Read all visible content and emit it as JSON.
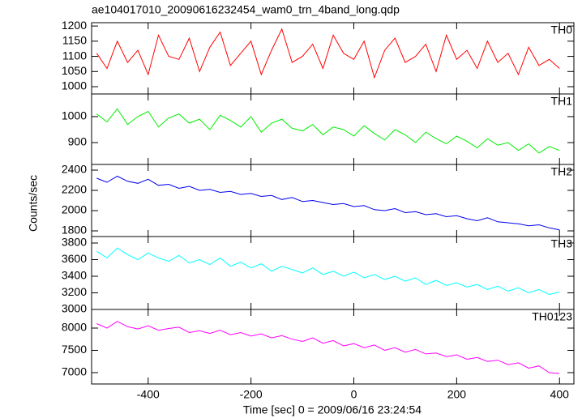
{
  "chart_data": {
    "type": "line",
    "title": "ae104017010_20090616232454_wam0_trn_4band_long.qdp",
    "xlabel": "Time [sec] 0 = 2009/06/16 23:24:54",
    "ylabel": "Counts/sec",
    "xlim": [
      -510,
      428
    ],
    "xticks": [
      -400,
      -200,
      0,
      200,
      400
    ],
    "x": [
      -500,
      -480,
      -460,
      -440,
      -420,
      -400,
      -380,
      -360,
      -340,
      -320,
      -300,
      -280,
      -260,
      -240,
      -220,
      -200,
      -180,
      -160,
      -140,
      -120,
      -100,
      -80,
      -60,
      -40,
      -20,
      0,
      20,
      40,
      60,
      80,
      100,
      120,
      140,
      160,
      180,
      200,
      220,
      240,
      260,
      280,
      300,
      320,
      340,
      360,
      380,
      400
    ],
    "panels": [
      {
        "name": "TH0",
        "color": "#ff0000",
        "ylim": [
          976,
          1211
        ],
        "yticks": [
          1000,
          1050,
          1100,
          1150,
          1200
        ],
        "values": [
          1110,
          1060,
          1150,
          1080,
          1120,
          1040,
          1170,
          1100,
          1090,
          1160,
          1050,
          1130,
          1180,
          1070,
          1110,
          1150,
          1040,
          1120,
          1190,
          1080,
          1100,
          1140,
          1060,
          1170,
          1110,
          1090,
          1150,
          1030,
          1120,
          1160,
          1080,
          1100,
          1140,
          1050,
          1170,
          1090,
          1120,
          1060,
          1150,
          1080,
          1110,
          1040,
          1130,
          1070,
          1090,
          1060
        ]
      },
      {
        "name": "TH1",
        "color": "#00ee00",
        "ylim": [
          816,
          1087
        ],
        "yticks": [
          900,
          1000
        ],
        "values": [
          1010,
          980,
          1030,
          970,
          1000,
          1020,
          960,
          995,
          1010,
          975,
          990,
          950,
          1005,
          985,
          960,
          1000,
          940,
          975,
          990,
          955,
          945,
          970,
          930,
          960,
          950,
          925,
          965,
          935,
          910,
          950,
          930,
          900,
          940,
          915,
          895,
          925,
          905,
          880,
          915,
          890,
          900,
          870,
          895,
          860,
          885,
          870
        ]
      },
      {
        "name": "TH2",
        "color": "#0000ee",
        "ylim": [
          1744,
          2456
        ],
        "yticks": [
          1800,
          2000,
          2200,
          2400
        ],
        "values": [
          2320,
          2280,
          2340,
          2290,
          2270,
          2310,
          2250,
          2260,
          2220,
          2240,
          2200,
          2210,
          2180,
          2190,
          2160,
          2170,
          2140,
          2150,
          2110,
          2130,
          2090,
          2100,
          2080,
          2060,
          2070,
          2040,
          2050,
          2010,
          2000,
          2020,
          1980,
          1990,
          1960,
          1970,
          1940,
          1950,
          1920,
          1900,
          1930,
          1890,
          1880,
          1870,
          1850,
          1860,
          1830,
          1810
        ]
      },
      {
        "name": "TH3",
        "color": "#00ffff",
        "ylim": [
          3000,
          3878
        ],
        "yticks": [
          3000,
          3200,
          3400,
          3600,
          3800
        ],
        "values": [
          3700,
          3620,
          3740,
          3660,
          3600,
          3680,
          3620,
          3580,
          3650,
          3560,
          3600,
          3540,
          3620,
          3520,
          3570,
          3500,
          3550,
          3460,
          3520,
          3480,
          3440,
          3500,
          3420,
          3460,
          3400,
          3450,
          3380,
          3420,
          3360,
          3400,
          3340,
          3380,
          3300,
          3350,
          3290,
          3320,
          3270,
          3300,
          3240,
          3280,
          3220,
          3260,
          3200,
          3240,
          3180,
          3210
        ]
      },
      {
        "name": "TH0123",
        "color": "#ff00ff",
        "ylim": [
          6745,
          8418
        ],
        "yticks": [
          7000,
          7500,
          8000
        ],
        "values": [
          8100,
          8000,
          8150,
          8030,
          7980,
          8050,
          7950,
          7990,
          8020,
          7900,
          7940,
          7880,
          7950,
          7850,
          7900,
          7820,
          7870,
          7780,
          7830,
          7750,
          7700,
          7780,
          7660,
          7720,
          7600,
          7650,
          7560,
          7620,
          7500,
          7560,
          7460,
          7520,
          7420,
          7440,
          7360,
          7400,
          7300,
          7340,
          7250,
          7280,
          7180,
          7220,
          7100,
          7150,
          7000,
          6980
        ]
      }
    ]
  }
}
